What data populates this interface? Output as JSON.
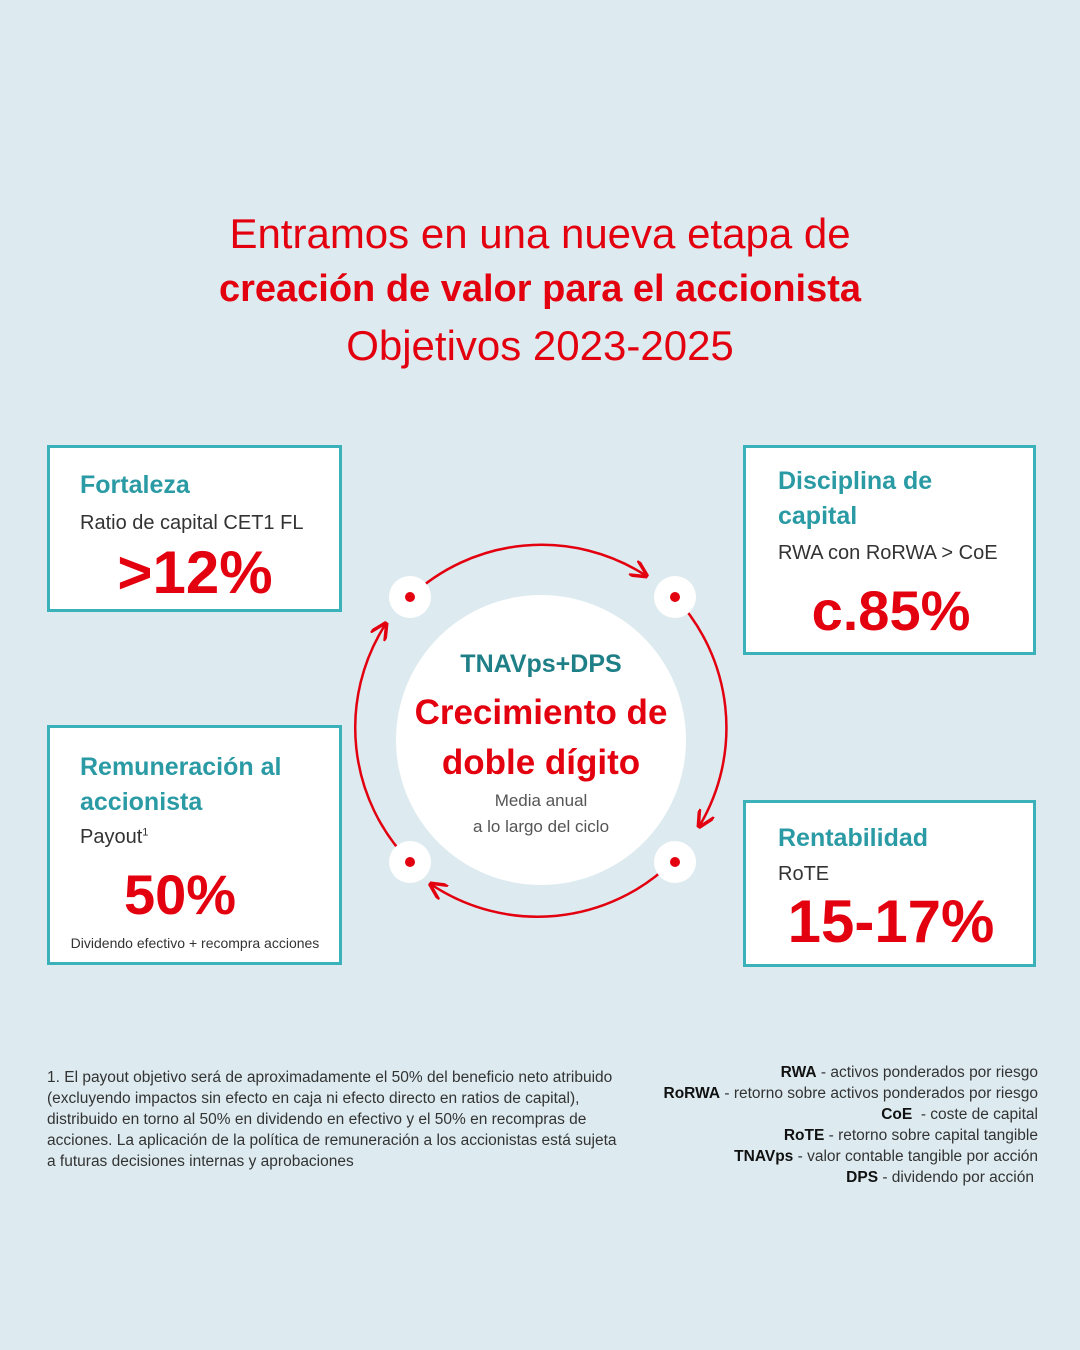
{
  "header": {
    "line1": "Entramos en una nueva etapa de",
    "line2": "creación de valor para el accionista",
    "line3": "Objetivos 2023-2025"
  },
  "cards": {
    "fortaleza": {
      "title": "Fortaleza",
      "subtitle": "Ratio de capital CET1 FL",
      "value": ">12%"
    },
    "disciplina": {
      "title": "Disciplina de capital",
      "subtitle": "RWA con RoRWA > CoE",
      "value": "c.85%"
    },
    "remuneracion": {
      "title": "Remuneración al accionista",
      "subtitle": "Payout",
      "sup": "1",
      "value": "50%",
      "note": "Dividendo efectivo + recompra acciones"
    },
    "rentabilidad": {
      "title": "Rentabilidad",
      "subtitle": "RoTE",
      "value": "15-17%"
    }
  },
  "center": {
    "metric": "TNAVps+DPS",
    "headline_1": "Crecimiento de",
    "headline_2": "doble dígito",
    "caption_1": "Media anual",
    "caption_2": "a lo largo del ciclo"
  },
  "footnote": "1. El payout objetivo será de aproximadamente el 50% del beneficio neto atribuido (excluyendo impactos sin efecto en caja ni efecto directo en ratios de capital), distribuido en torno al 50% en dividendo en efectivo y el 50% en recompras de acciones. La aplicación de la política de remuneración a los accionistas está sujeta a futuras decisiones internas y aprobaciones",
  "glossary": [
    {
      "term": "RWA",
      "definition": " - activos ponderados por riesgo"
    },
    {
      "term": "RoRWA",
      "definition": " - retorno sobre activos ponderados por riesgo"
    },
    {
      "term": "CoE",
      "definition": "  - coste de capital"
    },
    {
      "term": "RoTE",
      "definition": " - retorno sobre capital tangible"
    },
    {
      "term": "TNAVps",
      "definition": " - valor contable tangible por acción"
    },
    {
      "term": "DPS",
      "definition": " - dividendo por acción"
    }
  ],
  "colors": {
    "background": "#ddebf0",
    "accent_red": "#e3000f",
    "teal": "#3bb1b9",
    "teal_text": "#2a9aa4"
  }
}
